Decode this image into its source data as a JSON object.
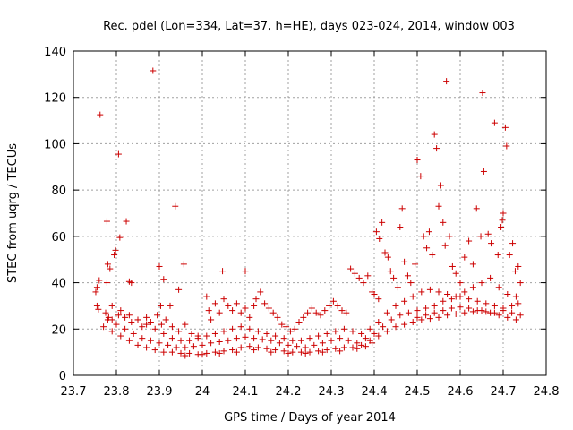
{
  "chart_data": {
    "type": "scatter",
    "title": "Rec. pdel (Lon=334, Lat=37, h=HE), days 023-024, 2014, window 003",
    "xlabel": "GPS time / Days of year 2014",
    "ylabel": "STEC from uqrg / TECUs",
    "xlim": [
      23.7,
      24.8
    ],
    "ylim": [
      0,
      140
    ],
    "xticks": [
      23.7,
      23.8,
      23.9,
      24.0,
      24.1,
      24.2,
      24.3,
      24.4,
      24.5,
      24.6,
      24.7,
      24.8
    ],
    "xtick_labels": [
      "23.7",
      "23.8",
      "23.9",
      "24",
      "24.1",
      "24.2",
      "24.3",
      "24.4",
      "24.5",
      "24.6",
      "24.7",
      "24.8"
    ],
    "yticks": [
      0,
      20,
      40,
      60,
      80,
      100,
      120,
      140
    ],
    "ytick_labels": [
      "0",
      "20",
      "40",
      "60",
      "80",
      "100",
      "120",
      "140"
    ],
    "grid": true,
    "marker": "+",
    "color": "#cc0000",
    "series": [
      {
        "points": [
          [
            23.762,
            112.5
          ],
          [
            23.885,
            131.5
          ],
          [
            23.805,
            95.5
          ],
          [
            23.937,
            73
          ],
          [
            23.778,
            66.5
          ],
          [
            23.823,
            66.5
          ],
          [
            23.808,
            59.5
          ],
          [
            23.798,
            54
          ],
          [
            23.795,
            52
          ],
          [
            23.78,
            48
          ],
          [
            23.785,
            46
          ],
          [
            23.9,
            47
          ],
          [
            23.957,
            48
          ],
          [
            24.047,
            45
          ],
          [
            24.1,
            45
          ],
          [
            23.91,
            41.5
          ],
          [
            23.76,
            41
          ],
          [
            23.83,
            40.5
          ],
          [
            23.835,
            40
          ],
          [
            23.778,
            40
          ],
          [
            23.755,
            38
          ],
          [
            23.752,
            36
          ],
          [
            23.945,
            37
          ],
          [
            23.925,
            30
          ],
          [
            23.903,
            30
          ],
          [
            23.755,
            30
          ],
          [
            23.758,
            28.5
          ],
          [
            23.775,
            27
          ],
          [
            23.782,
            25
          ],
          [
            23.79,
            24
          ],
          [
            23.805,
            26
          ],
          [
            23.82,
            25
          ],
          [
            23.835,
            23
          ],
          [
            23.85,
            24
          ],
          [
            23.87,
            25
          ],
          [
            23.86,
            21
          ],
          [
            23.88,
            23
          ],
          [
            23.895,
            26
          ],
          [
            23.905,
            22
          ],
          [
            23.915,
            24
          ],
          [
            23.93,
            21
          ],
          [
            23.945,
            19
          ],
          [
            23.96,
            22
          ],
          [
            23.975,
            18
          ],
          [
            23.99,
            17
          ],
          [
            24.01,
            34
          ],
          [
            24.015,
            28
          ],
          [
            24.02,
            24
          ],
          [
            24.03,
            31
          ],
          [
            24.04,
            27
          ],
          [
            24.05,
            33
          ],
          [
            24.06,
            30
          ],
          [
            24.07,
            28
          ],
          [
            24.08,
            31
          ],
          [
            24.09,
            27
          ],
          [
            24.1,
            29
          ],
          [
            24.11,
            25
          ],
          [
            24.12,
            30
          ],
          [
            24.125,
            33
          ],
          [
            24.135,
            36
          ],
          [
            24.145,
            31
          ],
          [
            24.155,
            29
          ],
          [
            24.165,
            27
          ],
          [
            24.175,
            25
          ],
          [
            24.185,
            22
          ],
          [
            24.195,
            21
          ],
          [
            24.205,
            19
          ],
          [
            24.215,
            20
          ],
          [
            24.225,
            23
          ],
          [
            24.235,
            25
          ],
          [
            24.245,
            27
          ],
          [
            24.255,
            29
          ],
          [
            24.265,
            27
          ],
          [
            24.275,
            26
          ],
          [
            24.285,
            28
          ],
          [
            24.295,
            30
          ],
          [
            24.305,
            32
          ],
          [
            24.315,
            30
          ],
          [
            24.325,
            28
          ],
          [
            24.335,
            27
          ],
          [
            24.345,
            46
          ],
          [
            24.355,
            44
          ],
          [
            24.365,
            42
          ],
          [
            24.375,
            40
          ],
          [
            24.385,
            43
          ],
          [
            24.395,
            36
          ],
          [
            24.4,
            35
          ],
          [
            24.41,
            33
          ],
          [
            24.405,
            62
          ],
          [
            24.412,
            59
          ],
          [
            24.418,
            66
          ],
          [
            24.425,
            53
          ],
          [
            24.432,
            51
          ],
          [
            24.438,
            45
          ],
          [
            24.445,
            42
          ],
          [
            24.455,
            38
          ],
          [
            24.46,
            64
          ],
          [
            24.465,
            72
          ],
          [
            24.47,
            49
          ],
          [
            24.478,
            43
          ],
          [
            24.485,
            40
          ],
          [
            24.495,
            48
          ],
          [
            24.5,
            93
          ],
          [
            24.508,
            86
          ],
          [
            24.515,
            60
          ],
          [
            24.522,
            55
          ],
          [
            24.528,
            62
          ],
          [
            24.535,
            52
          ],
          [
            24.54,
            104
          ],
          [
            24.545,
            98
          ],
          [
            24.55,
            73
          ],
          [
            24.555,
            82
          ],
          [
            24.56,
            66
          ],
          [
            24.565,
            56
          ],
          [
            24.568,
            127
          ],
          [
            24.575,
            60
          ],
          [
            24.582,
            47
          ],
          [
            24.59,
            44
          ],
          [
            24.6,
            40
          ],
          [
            24.61,
            51
          ],
          [
            24.62,
            58
          ],
          [
            24.63,
            48
          ],
          [
            24.638,
            72
          ],
          [
            24.648,
            60
          ],
          [
            24.652,
            122
          ],
          [
            24.655,
            88
          ],
          [
            24.665,
            61
          ],
          [
            24.672,
            57
          ],
          [
            24.68,
            109
          ],
          [
            24.688,
            52
          ],
          [
            24.695,
            64
          ],
          [
            24.698,
            67
          ],
          [
            24.7,
            70
          ],
          [
            24.705,
            107
          ],
          [
            24.708,
            99
          ],
          [
            24.715,
            52
          ],
          [
            24.722,
            57
          ],
          [
            24.728,
            45
          ],
          [
            24.735,
            47
          ],
          [
            24.74,
            40
          ],
          [
            23.77,
            21
          ],
          [
            23.79,
            19
          ],
          [
            23.81,
            17
          ],
          [
            23.83,
            15
          ],
          [
            23.85,
            13
          ],
          [
            23.87,
            12
          ],
          [
            23.89,
            11
          ],
          [
            23.91,
            10
          ],
          [
            23.93,
            10
          ],
          [
            23.95,
            9.5
          ],
          [
            23.97,
            9.5
          ],
          [
            23.99,
            9
          ],
          [
            24.01,
            9.5
          ],
          [
            24.03,
            10
          ],
          [
            24.05,
            10.5
          ],
          [
            24.07,
            11
          ],
          [
            24.09,
            12
          ],
          [
            24.11,
            12.5
          ],
          [
            24.13,
            12
          ],
          [
            24.15,
            11.5
          ],
          [
            24.17,
            11
          ],
          [
            24.19,
            10.5
          ],
          [
            24.21,
            10
          ],
          [
            24.23,
            10
          ],
          [
            24.25,
            10
          ],
          [
            24.27,
            10.5
          ],
          [
            24.29,
            11
          ],
          [
            24.31,
            11.5
          ],
          [
            24.33,
            12
          ],
          [
            24.35,
            12
          ],
          [
            24.37,
            13
          ],
          [
            24.39,
            15
          ],
          [
            24.41,
            17
          ],
          [
            24.43,
            19
          ],
          [
            24.45,
            21
          ],
          [
            24.47,
            22
          ],
          [
            24.49,
            23
          ],
          [
            24.51,
            24
          ],
          [
            24.53,
            24.5
          ],
          [
            24.55,
            25
          ],
          [
            24.57,
            26
          ],
          [
            24.59,
            26.5
          ],
          [
            24.61,
            27
          ],
          [
            24.63,
            27.5
          ],
          [
            24.65,
            28
          ],
          [
            24.67,
            27
          ],
          [
            24.69,
            26
          ],
          [
            24.71,
            25
          ],
          [
            24.73,
            24
          ],
          [
            23.78,
            24
          ],
          [
            23.8,
            22
          ],
          [
            23.82,
            20
          ],
          [
            23.84,
            18
          ],
          [
            23.86,
            16
          ],
          [
            23.88,
            15
          ],
          [
            23.9,
            14
          ],
          [
            23.92,
            13
          ],
          [
            23.94,
            12
          ],
          [
            23.96,
            12
          ],
          [
            23.98,
            12.5
          ],
          [
            24.0,
            13
          ],
          [
            24.02,
            14
          ],
          [
            24.04,
            14.5
          ],
          [
            24.06,
            15
          ],
          [
            24.08,
            16
          ],
          [
            24.1,
            16.5
          ],
          [
            24.12,
            16
          ],
          [
            24.14,
            15.5
          ],
          [
            24.16,
            15
          ],
          [
            24.18,
            14
          ],
          [
            24.2,
            13
          ],
          [
            24.22,
            12.5
          ],
          [
            24.24,
            12
          ],
          [
            24.26,
            13
          ],
          [
            24.28,
            14
          ],
          [
            24.3,
            15
          ],
          [
            24.32,
            16
          ],
          [
            24.34,
            15
          ],
          [
            24.36,
            14
          ],
          [
            24.38,
            16
          ],
          [
            24.4,
            18
          ],
          [
            24.42,
            21
          ],
          [
            24.44,
            24
          ],
          [
            24.46,
            26
          ],
          [
            24.48,
            27
          ],
          [
            24.5,
            28
          ],
          [
            24.52,
            29
          ],
          [
            24.54,
            30
          ],
          [
            24.56,
            32
          ],
          [
            24.58,
            33
          ],
          [
            24.6,
            34
          ],
          [
            24.62,
            33
          ],
          [
            24.64,
            32
          ],
          [
            24.66,
            31
          ],
          [
            24.68,
            30
          ],
          [
            24.7,
            29
          ],
          [
            24.72,
            30
          ],
          [
            24.735,
            31
          ],
          [
            23.79,
            30
          ],
          [
            23.81,
            28
          ],
          [
            23.83,
            26
          ],
          [
            23.85,
            24
          ],
          [
            23.87,
            22
          ],
          [
            23.89,
            20
          ],
          [
            23.91,
            18
          ],
          [
            23.93,
            16
          ],
          [
            23.95,
            15
          ],
          [
            23.97,
            15
          ],
          [
            23.99,
            16
          ],
          [
            24.01,
            17
          ],
          [
            24.03,
            18
          ],
          [
            24.05,
            19
          ],
          [
            24.07,
            20
          ],
          [
            24.09,
            21
          ],
          [
            24.11,
            20
          ],
          [
            24.13,
            19
          ],
          [
            24.15,
            18
          ],
          [
            24.17,
            17
          ],
          [
            24.19,
            16
          ],
          [
            24.21,
            15
          ],
          [
            24.23,
            15
          ],
          [
            24.25,
            16
          ],
          [
            24.27,
            17
          ],
          [
            24.29,
            18
          ],
          [
            24.31,
            19
          ],
          [
            24.33,
            20
          ],
          [
            24.35,
            19
          ],
          [
            24.37,
            18
          ],
          [
            24.39,
            20
          ],
          [
            24.41,
            23
          ],
          [
            24.43,
            27
          ],
          [
            24.45,
            30
          ],
          [
            24.47,
            32
          ],
          [
            24.49,
            34
          ],
          [
            24.51,
            36
          ],
          [
            24.53,
            37
          ],
          [
            24.55,
            36
          ],
          [
            24.57,
            35
          ],
          [
            24.59,
            34
          ],
          [
            24.61,
            36
          ],
          [
            24.63,
            38
          ],
          [
            24.65,
            40
          ],
          [
            24.67,
            42
          ],
          [
            24.69,
            38
          ],
          [
            24.71,
            35
          ],
          [
            24.73,
            34
          ],
          [
            23.96,
            8.5
          ],
          [
            24.0,
            9
          ],
          [
            24.04,
            9.5
          ],
          [
            24.08,
            10
          ],
          [
            24.12,
            11
          ],
          [
            24.16,
            10
          ],
          [
            24.2,
            9.5
          ],
          [
            24.24,
            9.5
          ],
          [
            24.28,
            10
          ],
          [
            24.32,
            10.5
          ],
          [
            24.36,
            11.5
          ],
          [
            24.38,
            12.5
          ],
          [
            24.395,
            14
          ],
          [
            24.5,
            25
          ],
          [
            24.52,
            26
          ],
          [
            24.54,
            27
          ],
          [
            24.56,
            28
          ],
          [
            24.58,
            29
          ],
          [
            24.6,
            29.5
          ],
          [
            24.62,
            29
          ],
          [
            24.64,
            28
          ],
          [
            24.66,
            27.5
          ],
          [
            24.68,
            27
          ],
          [
            24.7,
            28
          ],
          [
            24.72,
            27
          ],
          [
            24.74,
            26
          ]
        ]
      }
    ]
  }
}
